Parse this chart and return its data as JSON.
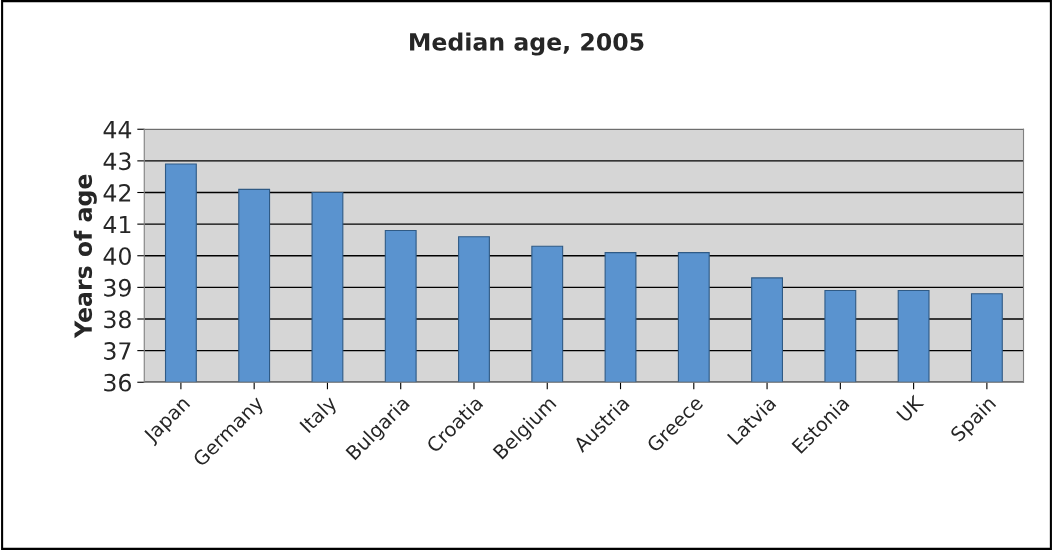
{
  "chart_data": {
    "type": "bar",
    "title": "Median age, 2005",
    "ylabel": "Years of age",
    "categories": [
      "Japan",
      "Germany",
      "Italy",
      "Bulgaria",
      "Croatia",
      "Belgium",
      "Austria",
      "Greece",
      "Latvia",
      "Estonia",
      "UK",
      "Spain"
    ],
    "values": [
      42.9,
      42.1,
      42.0,
      40.8,
      40.6,
      40.3,
      40.1,
      40.1,
      39.3,
      38.9,
      38.9,
      38.8
    ],
    "color": "#5a93cf",
    "ylim": [
      36,
      44
    ],
    "yticks": [
      36,
      37,
      38,
      39,
      40,
      41,
      42,
      43,
      44
    ],
    "grid": "y",
    "legend": false
  }
}
